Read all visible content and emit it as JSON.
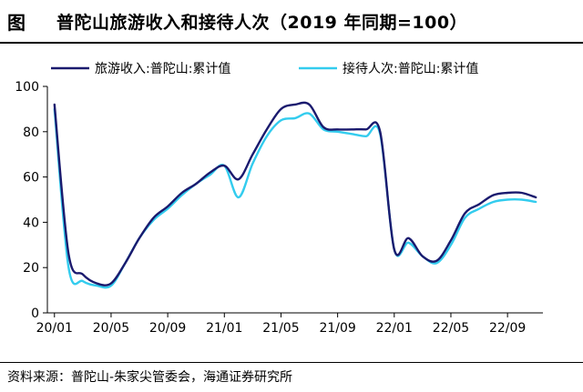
{
  "header": {
    "tag": "图",
    "title": "普陀山旅游收入和接待人次（2019 年同期=100）"
  },
  "source": "资料来源：普陀山-朱家尖管委会，海通证券研究所",
  "chart_data": {
    "type": "line",
    "title": "普陀山旅游收入和接待人次（2019 年同期=100）",
    "xlabel": "",
    "ylabel": "",
    "ylim": [
      0,
      100
    ],
    "yticks": [
      0,
      20,
      40,
      60,
      80,
      100
    ],
    "x": [
      "20/01",
      "20/02",
      "20/03",
      "20/04",
      "20/05",
      "20/06",
      "20/07",
      "20/08",
      "20/09",
      "20/10",
      "20/11",
      "20/12",
      "21/01",
      "21/02",
      "21/03",
      "21/04",
      "21/05",
      "21/06",
      "21/07",
      "21/08",
      "21/09",
      "21/10",
      "21/11",
      "21/12",
      "22/01",
      "22/02",
      "22/03",
      "22/04",
      "22/05",
      "22/06",
      "22/07",
      "22/08",
      "22/09",
      "22/10",
      "22/11"
    ],
    "xtick_labels": [
      "20/01",
      "20/05",
      "20/09",
      "21/01",
      "21/05",
      "21/09",
      "22/01",
      "22/05",
      "22/09"
    ],
    "legend_position": "top",
    "grid": false,
    "series": [
      {
        "name": "旅游收入:普陀山:累计值",
        "color": "#1a1a6e",
        "values": [
          92,
          26,
          17,
          13,
          13,
          22,
          33,
          42,
          47,
          53,
          57,
          62,
          65,
          59,
          70,
          81,
          90,
          92,
          92,
          82,
          81,
          81,
          81,
          80,
          28,
          33,
          25,
          23,
          32,
          44,
          48,
          52,
          53,
          53,
          51
        ]
      },
      {
        "name": "接待人次:普陀山:累计值",
        "color": "#33ccee",
        "values": [
          90,
          20,
          14,
          12,
          12,
          22,
          33,
          41,
          46,
          52,
          57,
          61,
          65,
          51,
          66,
          78,
          85,
          86,
          88,
          81,
          80,
          79,
          78,
          79,
          28,
          31,
          25,
          22,
          30,
          42,
          46,
          49,
          50,
          50,
          49
        ]
      }
    ]
  }
}
